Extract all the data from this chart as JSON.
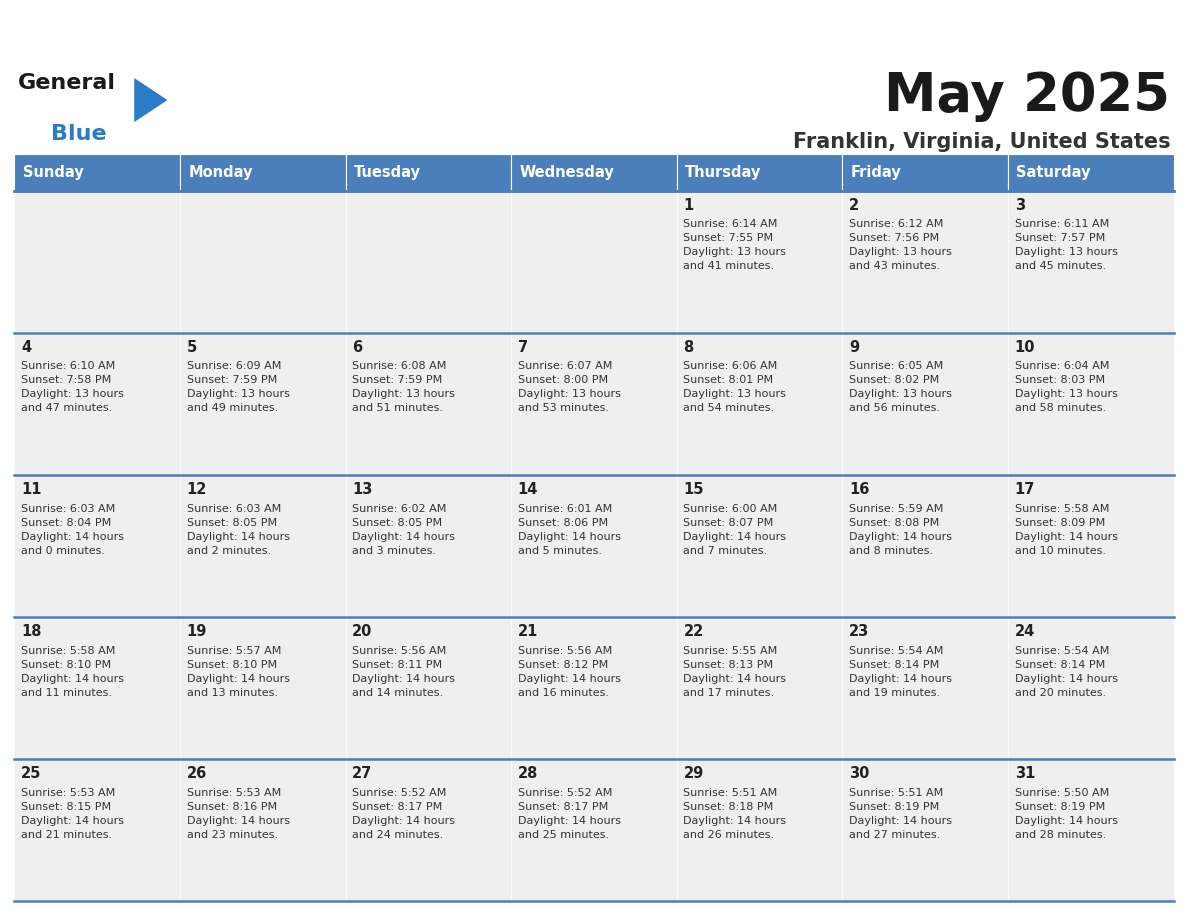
{
  "title": "May 2025",
  "subtitle": "Franklin, Virginia, United States",
  "days_of_week": [
    "Sunday",
    "Monday",
    "Tuesday",
    "Wednesday",
    "Thursday",
    "Friday",
    "Saturday"
  ],
  "header_bg": "#4a7fbb",
  "header_text_color": "#ffffff",
  "cell_bg": "#efefef",
  "row_line_color": "#4a7fbb",
  "text_color": "#333333",
  "day_num_color": "#222222",
  "title_color": "#1a1a1a",
  "subtitle_color": "#333333",
  "logo_general_color": "#1a1a1a",
  "logo_blue_color": "#2a7cc7",
  "calendar": [
    [
      {
        "day": "",
        "info": ""
      },
      {
        "day": "",
        "info": ""
      },
      {
        "day": "",
        "info": ""
      },
      {
        "day": "",
        "info": ""
      },
      {
        "day": "1",
        "info": "Sunrise: 6:14 AM\nSunset: 7:55 PM\nDaylight: 13 hours\nand 41 minutes."
      },
      {
        "day": "2",
        "info": "Sunrise: 6:12 AM\nSunset: 7:56 PM\nDaylight: 13 hours\nand 43 minutes."
      },
      {
        "day": "3",
        "info": "Sunrise: 6:11 AM\nSunset: 7:57 PM\nDaylight: 13 hours\nand 45 minutes."
      }
    ],
    [
      {
        "day": "4",
        "info": "Sunrise: 6:10 AM\nSunset: 7:58 PM\nDaylight: 13 hours\nand 47 minutes."
      },
      {
        "day": "5",
        "info": "Sunrise: 6:09 AM\nSunset: 7:59 PM\nDaylight: 13 hours\nand 49 minutes."
      },
      {
        "day": "6",
        "info": "Sunrise: 6:08 AM\nSunset: 7:59 PM\nDaylight: 13 hours\nand 51 minutes."
      },
      {
        "day": "7",
        "info": "Sunrise: 6:07 AM\nSunset: 8:00 PM\nDaylight: 13 hours\nand 53 minutes."
      },
      {
        "day": "8",
        "info": "Sunrise: 6:06 AM\nSunset: 8:01 PM\nDaylight: 13 hours\nand 54 minutes."
      },
      {
        "day": "9",
        "info": "Sunrise: 6:05 AM\nSunset: 8:02 PM\nDaylight: 13 hours\nand 56 minutes."
      },
      {
        "day": "10",
        "info": "Sunrise: 6:04 AM\nSunset: 8:03 PM\nDaylight: 13 hours\nand 58 minutes."
      }
    ],
    [
      {
        "day": "11",
        "info": "Sunrise: 6:03 AM\nSunset: 8:04 PM\nDaylight: 14 hours\nand 0 minutes."
      },
      {
        "day": "12",
        "info": "Sunrise: 6:03 AM\nSunset: 8:05 PM\nDaylight: 14 hours\nand 2 minutes."
      },
      {
        "day": "13",
        "info": "Sunrise: 6:02 AM\nSunset: 8:05 PM\nDaylight: 14 hours\nand 3 minutes."
      },
      {
        "day": "14",
        "info": "Sunrise: 6:01 AM\nSunset: 8:06 PM\nDaylight: 14 hours\nand 5 minutes."
      },
      {
        "day": "15",
        "info": "Sunrise: 6:00 AM\nSunset: 8:07 PM\nDaylight: 14 hours\nand 7 minutes."
      },
      {
        "day": "16",
        "info": "Sunrise: 5:59 AM\nSunset: 8:08 PM\nDaylight: 14 hours\nand 8 minutes."
      },
      {
        "day": "17",
        "info": "Sunrise: 5:58 AM\nSunset: 8:09 PM\nDaylight: 14 hours\nand 10 minutes."
      }
    ],
    [
      {
        "day": "18",
        "info": "Sunrise: 5:58 AM\nSunset: 8:10 PM\nDaylight: 14 hours\nand 11 minutes."
      },
      {
        "day": "19",
        "info": "Sunrise: 5:57 AM\nSunset: 8:10 PM\nDaylight: 14 hours\nand 13 minutes."
      },
      {
        "day": "20",
        "info": "Sunrise: 5:56 AM\nSunset: 8:11 PM\nDaylight: 14 hours\nand 14 minutes."
      },
      {
        "day": "21",
        "info": "Sunrise: 5:56 AM\nSunset: 8:12 PM\nDaylight: 14 hours\nand 16 minutes."
      },
      {
        "day": "22",
        "info": "Sunrise: 5:55 AM\nSunset: 8:13 PM\nDaylight: 14 hours\nand 17 minutes."
      },
      {
        "day": "23",
        "info": "Sunrise: 5:54 AM\nSunset: 8:14 PM\nDaylight: 14 hours\nand 19 minutes."
      },
      {
        "day": "24",
        "info": "Sunrise: 5:54 AM\nSunset: 8:14 PM\nDaylight: 14 hours\nand 20 minutes."
      }
    ],
    [
      {
        "day": "25",
        "info": "Sunrise: 5:53 AM\nSunset: 8:15 PM\nDaylight: 14 hours\nand 21 minutes."
      },
      {
        "day": "26",
        "info": "Sunrise: 5:53 AM\nSunset: 8:16 PM\nDaylight: 14 hours\nand 23 minutes."
      },
      {
        "day": "27",
        "info": "Sunrise: 5:52 AM\nSunset: 8:17 PM\nDaylight: 14 hours\nand 24 minutes."
      },
      {
        "day": "28",
        "info": "Sunrise: 5:52 AM\nSunset: 8:17 PM\nDaylight: 14 hours\nand 25 minutes."
      },
      {
        "day": "29",
        "info": "Sunrise: 5:51 AM\nSunset: 8:18 PM\nDaylight: 14 hours\nand 26 minutes."
      },
      {
        "day": "30",
        "info": "Sunrise: 5:51 AM\nSunset: 8:19 PM\nDaylight: 14 hours\nand 27 minutes."
      },
      {
        "day": "31",
        "info": "Sunrise: 5:50 AM\nSunset: 8:19 PM\nDaylight: 14 hours\nand 28 minutes."
      }
    ]
  ]
}
